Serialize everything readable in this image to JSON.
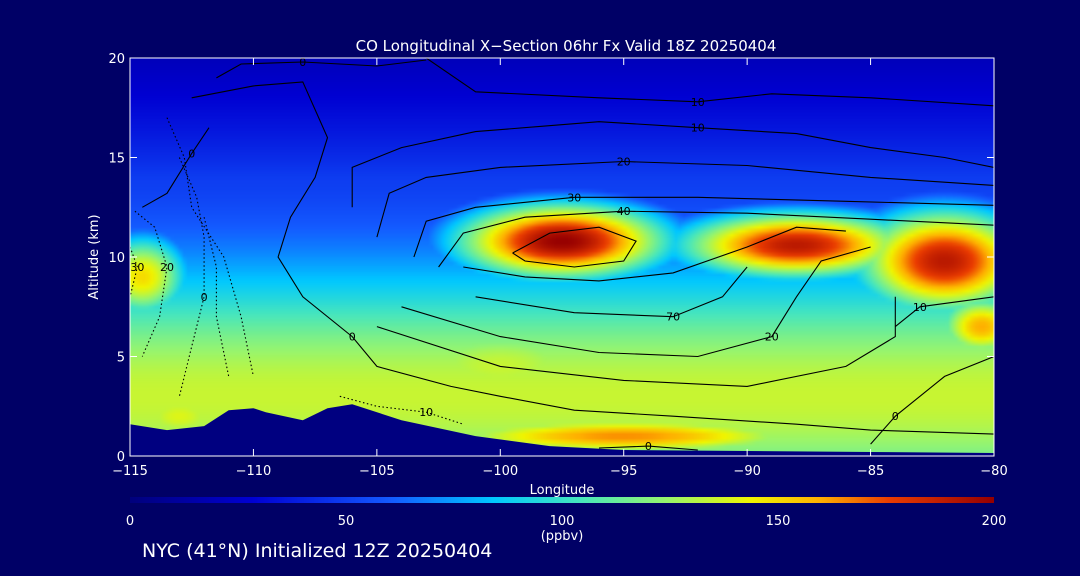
{
  "chart_data": {
    "type": "heatmap",
    "title": "CO Longitudinal X−Section 06hr  Fx Valid 18Z 20250404",
    "xlabel": "Longitude",
    "ylabel": "Altitude (km)",
    "xlim": [
      -115,
      -80
    ],
    "ylim": [
      0,
      20
    ],
    "x_ticks": [
      -115,
      -110,
      -105,
      -100,
      -95,
      -90,
      -85,
      -80
    ],
    "x_tick_labels": [
      "−115",
      "−110",
      "−105",
      "−100",
      "−95",
      "−90",
      "−85",
      "−80"
    ],
    "y_ticks": [
      0,
      5,
      10,
      15,
      20
    ],
    "y_tick_labels": [
      "0",
      "5",
      "10",
      "15",
      "20"
    ],
    "colorbar": {
      "min": 0,
      "max": 200,
      "ticks": [
        0,
        50,
        100,
        150,
        200
      ],
      "tick_labels": [
        "0",
        "50",
        "100",
        "150",
        "200"
      ],
      "unit": "(ppbv)"
    },
    "co_field": {
      "background": 45,
      "blobs": [
        {
          "lon": -97.5,
          "alt": 10.8,
          "sx": 3.6,
          "sy": 1.6,
          "v": 200
        },
        {
          "lon": -88.0,
          "alt": 10.6,
          "sx": 4.0,
          "sy": 1.4,
          "v": 190
        },
        {
          "lon": -82.0,
          "alt": 9.8,
          "sx": 3.0,
          "sy": 2.2,
          "v": 190
        },
        {
          "lon": -80.5,
          "alt": 6.5,
          "sx": 1.6,
          "sy": 1.4,
          "v": 160
        },
        {
          "lon": -114.5,
          "alt": 9.0,
          "sx": 1.6,
          "sy": 1.8,
          "v": 150
        },
        {
          "lon": -100.0,
          "alt": 4.5,
          "sx": 6.0,
          "sy": 2.5,
          "v": 135
        },
        {
          "lon": -90.0,
          "alt": 4.0,
          "sx": 5.0,
          "sy": 2.6,
          "v": 125
        },
        {
          "lon": -95.0,
          "alt": 1.0,
          "sx": 8.0,
          "sy": 0.9,
          "v": 165
        },
        {
          "lon": -110.0,
          "alt": 3.5,
          "sx": 4.0,
          "sy": 2.5,
          "v": 120
        },
        {
          "lon": -113.0,
          "alt": 2.0,
          "sx": 2.5,
          "sy": 1.5,
          "v": 140
        }
      ]
    },
    "contours": [
      {
        "label": "0",
        "dashed": false,
        "points": [
          [
            -114.5,
            12.5
          ],
          [
            -113.5,
            13.2
          ],
          [
            -112.5,
            15.2
          ],
          [
            -111.8,
            16.5
          ]
        ]
      },
      {
        "label": "0",
        "dashed": false,
        "points": [
          [
            -111.5,
            19.0
          ],
          [
            -110.5,
            19.7
          ],
          [
            -108.0,
            19.8
          ],
          [
            -105.0,
            19.6
          ],
          [
            -103.0,
            19.9
          ]
        ]
      },
      {
        "label": "0",
        "dashed": false,
        "points": [
          [
            -112.5,
            18.0
          ],
          [
            -110.0,
            18.6
          ],
          [
            -108.0,
            18.8
          ],
          [
            -107.0,
            16.0
          ],
          [
            -107.5,
            14.0
          ],
          [
            -108.5,
            12.0
          ],
          [
            -109.0,
            10.0
          ],
          [
            -108.0,
            8.0
          ],
          [
            -106.0,
            6.0
          ],
          [
            -105.0,
            4.5
          ],
          [
            -102.0,
            3.5
          ],
          [
            -100.0,
            3.0
          ],
          [
            -97.0,
            2.3
          ],
          [
            -93.0,
            2.0
          ],
          [
            -88.0,
            1.6
          ],
          [
            -85.0,
            1.3
          ],
          [
            -80.0,
            1.1
          ]
        ]
      },
      {
        "label": "10",
        "dashed": false,
        "points": [
          [
            -103.0,
            20.0
          ],
          [
            -101.0,
            18.3
          ],
          [
            -96.0,
            18.0
          ],
          [
            -92.0,
            17.8
          ],
          [
            -89.0,
            18.2
          ],
          [
            -85.0,
            18.0
          ],
          [
            -80.0,
            17.6
          ]
        ]
      },
      {
        "label": "10",
        "dashed": false,
        "points": [
          [
            -106.0,
            12.5
          ],
          [
            -106.0,
            14.5
          ],
          [
            -104.0,
            15.5
          ],
          [
            -101.0,
            16.3
          ],
          [
            -96.0,
            16.8
          ],
          [
            -92.0,
            16.5
          ],
          [
            -88.0,
            16.2
          ],
          [
            -85.0,
            15.5
          ],
          [
            -82.0,
            15.0
          ],
          [
            -80.0,
            14.5
          ]
        ]
      },
      {
        "label": "20",
        "dashed": false,
        "points": [
          [
            -105.0,
            11.0
          ],
          [
            -104.5,
            13.2
          ],
          [
            -103.0,
            14.0
          ],
          [
            -100.0,
            14.5
          ],
          [
            -95.0,
            14.8
          ],
          [
            -90.0,
            14.6
          ],
          [
            -85.0,
            14.0
          ],
          [
            -80.0,
            13.6
          ]
        ]
      },
      {
        "label": "30",
        "dashed": false,
        "points": [
          [
            -103.5,
            10.0
          ],
          [
            -103.0,
            11.8
          ],
          [
            -101.0,
            12.5
          ],
          [
            -97.0,
            13.0
          ],
          [
            -92.0,
            13.0
          ],
          [
            -86.0,
            12.8
          ],
          [
            -80.0,
            12.6
          ]
        ]
      },
      {
        "label": "40",
        "dashed": false,
        "points": [
          [
            -102.5,
            9.5
          ],
          [
            -101.5,
            11.2
          ],
          [
            -99.0,
            12.0
          ],
          [
            -95.0,
            12.3
          ],
          [
            -90.0,
            12.2
          ],
          [
            -85.0,
            11.9
          ],
          [
            -80.0,
            11.6
          ]
        ]
      },
      {
        "label": "",
        "dashed": false,
        "points": [
          [
            -99.5,
            10.2
          ],
          [
            -98.0,
            11.2
          ],
          [
            -96.0,
            11.5
          ],
          [
            -94.5,
            10.8
          ],
          [
            -95.0,
            9.8
          ],
          [
            -97.0,
            9.5
          ],
          [
            -99.0,
            9.8
          ],
          [
            -99.5,
            10.2
          ]
        ]
      },
      {
        "label": "",
        "dashed": false,
        "points": [
          [
            -101.5,
            9.5
          ],
          [
            -99.0,
            9.0
          ],
          [
            -96.0,
            8.8
          ],
          [
            -93.0,
            9.2
          ],
          [
            -90.0,
            10.5
          ],
          [
            -88.0,
            11.5
          ],
          [
            -86.0,
            11.3
          ]
        ]
      },
      {
        "label": "70",
        "dashed": false,
        "points": [
          [
            -101.0,
            8.0
          ],
          [
            -97.0,
            7.2
          ],
          [
            -93.0,
            7.0
          ],
          [
            -91.0,
            8.0
          ],
          [
            -90.0,
            9.5
          ]
        ]
      },
      {
        "label": "20",
        "dashed": false,
        "points": [
          [
            -104.0,
            7.5
          ],
          [
            -100.0,
            6.0
          ],
          [
            -96.0,
            5.2
          ],
          [
            -92.0,
            5.0
          ],
          [
            -89.0,
            6.0
          ],
          [
            -88.0,
            8.0
          ],
          [
            -87.0,
            9.8
          ],
          [
            -85.0,
            10.5
          ]
        ]
      },
      {
        "label": "",
        "dashed": false,
        "points": [
          [
            -105.0,
            6.5
          ],
          [
            -100.0,
            4.5
          ],
          [
            -95.0,
            3.8
          ],
          [
            -90.0,
            3.5
          ],
          [
            -86.0,
            4.5
          ],
          [
            -84.0,
            6.0
          ],
          [
            -84.0,
            8.0
          ]
        ]
      },
      {
        "label": "10",
        "dashed": false,
        "points": [
          [
            -84.0,
            6.5
          ],
          [
            -83.0,
            7.5
          ],
          [
            -80.0,
            8.0
          ]
        ]
      },
      {
        "label": "0",
        "dashed": false,
        "points": [
          [
            -80.0,
            5.0
          ],
          [
            -82.0,
            4.0
          ],
          [
            -84.0,
            2.0
          ],
          [
            -85.0,
            0.6
          ]
        ]
      },
      {
        "label": "0",
        "dashed": false,
        "points": [
          [
            -96.0,
            0.4
          ],
          [
            -94.0,
            0.5
          ],
          [
            -92.0,
            0.3
          ]
        ]
      },
      {
        "label": "0",
        "dashed": true,
        "points": [
          [
            -113.0,
            15.0
          ],
          [
            -112.3,
            13.0
          ],
          [
            -112.0,
            11.0
          ],
          [
            -112.0,
            8.0
          ],
          [
            -112.5,
            5.5
          ],
          [
            -113.0,
            3.0
          ]
        ]
      },
      {
        "label": "20",
        "dashed": true,
        "points": [
          [
            -114.8,
            12.3
          ],
          [
            -114.0,
            11.5
          ],
          [
            -113.5,
            9.5
          ],
          [
            -113.8,
            7.0
          ],
          [
            -114.5,
            5.0
          ]
        ]
      },
      {
        "label": "30",
        "dashed": true,
        "points": [
          [
            -115.0,
            10.5
          ],
          [
            -114.7,
            9.5
          ],
          [
            -115.0,
            8.0
          ]
        ]
      },
      {
        "label": "",
        "dashed": true,
        "points": [
          [
            -113.5,
            17.0
          ],
          [
            -112.8,
            15.0
          ],
          [
            -112.5,
            12.5
          ],
          [
            -111.2,
            10.0
          ],
          [
            -110.5,
            7.0
          ],
          [
            -110.0,
            4.0
          ]
        ]
      },
      {
        "label": "",
        "dashed": true,
        "points": [
          [
            -112.0,
            12.0
          ],
          [
            -111.5,
            9.5
          ],
          [
            -111.5,
            7.0
          ],
          [
            -111.0,
            4.0
          ]
        ]
      },
      {
        "label": "10",
        "dashed": true,
        "points": [
          [
            -106.5,
            3.0
          ],
          [
            -105.0,
            2.5
          ],
          [
            -103.0,
            2.2
          ],
          [
            -101.5,
            1.6
          ]
        ]
      }
    ],
    "terrain": [
      [
        -115,
        1.6
      ],
      [
        -113.5,
        1.3
      ],
      [
        -112,
        1.5
      ],
      [
        -111,
        2.3
      ],
      [
        -110,
        2.4
      ],
      [
        -109.5,
        2.2
      ],
      [
        -108,
        1.8
      ],
      [
        -107,
        2.4
      ],
      [
        -106,
        2.6
      ],
      [
        -104,
        1.8
      ],
      [
        -101,
        1.0
      ],
      [
        -98,
        0.5
      ],
      [
        -95,
        0.3
      ],
      [
        -90,
        0.25
      ],
      [
        -85,
        0.2
      ],
      [
        -80,
        0.15
      ]
    ]
  },
  "footer": "NYC (41°N) Initialized 12Z 20250404"
}
